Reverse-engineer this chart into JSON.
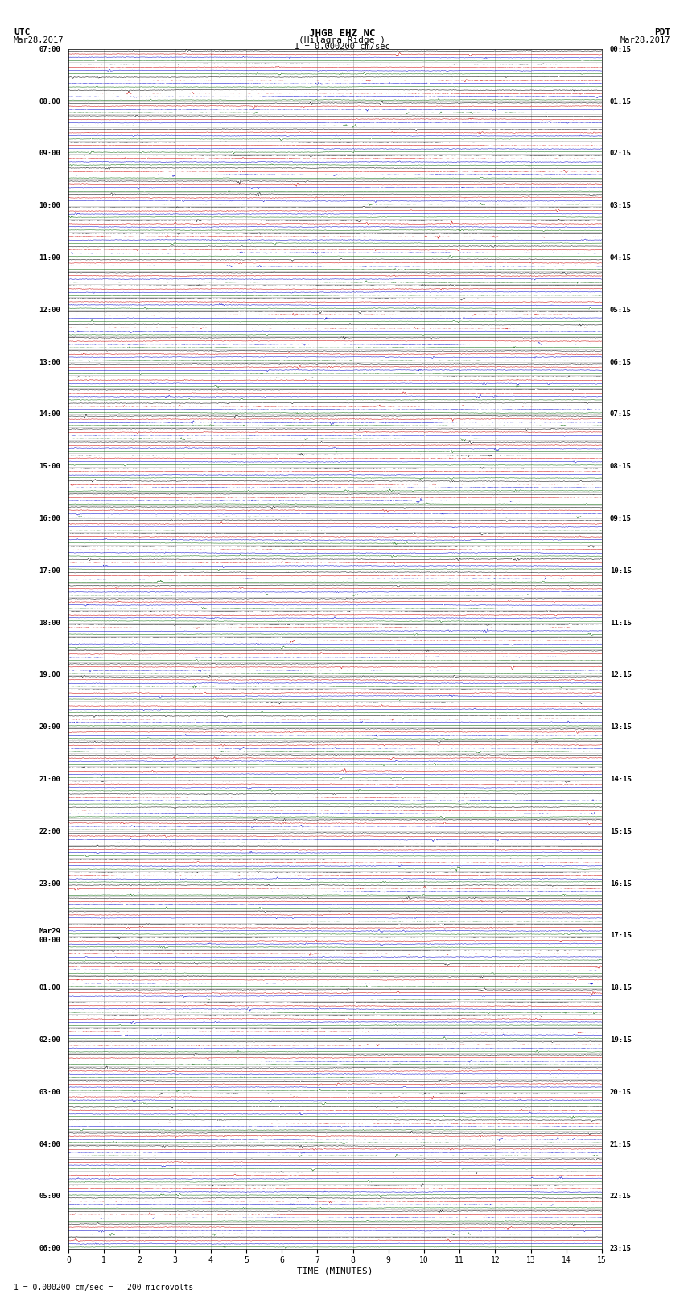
{
  "title_line1": "JHGB EHZ NC",
  "title_line2": "(Hilagra Ridge )",
  "scale_label": "I = 0.000200 cm/sec",
  "bottom_label": "1 = 0.000200 cm/sec =   200 microvolts",
  "left_header": "UTC",
  "left_date": "Mar28,2017",
  "right_header": "PDT",
  "right_date": "Mar28,2017",
  "xlabel": "TIME (MINUTES)",
  "xlim": [
    0,
    15
  ],
  "xticks": [
    0,
    1,
    2,
    3,
    4,
    5,
    6,
    7,
    8,
    9,
    10,
    11,
    12,
    13,
    14,
    15
  ],
  "bg_color": "#ffffff",
  "grid_color": "#888888",
  "trace_colors": [
    "#000000",
    "#cc0000",
    "#0000cc",
    "#006600"
  ],
  "utc_labels": [
    "07:00",
    "",
    "",
    "",
    "08:00",
    "",
    "",
    "",
    "09:00",
    "",
    "",
    "",
    "10:00",
    "",
    "",
    "",
    "11:00",
    "",
    "",
    "",
    "12:00",
    "",
    "",
    "",
    "13:00",
    "",
    "",
    "",
    "14:00",
    "",
    "",
    "",
    "15:00",
    "",
    "",
    "",
    "16:00",
    "",
    "",
    "",
    "17:00",
    "",
    "",
    "",
    "18:00",
    "",
    "",
    "",
    "19:00",
    "",
    "",
    "",
    "20:00",
    "",
    "",
    "",
    "21:00",
    "",
    "",
    "",
    "22:00",
    "",
    "",
    "",
    "23:00",
    "",
    "",
    "",
    "Mar29\n00:00",
    "",
    "",
    "",
    "01:00",
    "",
    "",
    "",
    "02:00",
    "",
    "",
    "",
    "03:00",
    "",
    "",
    "",
    "04:00",
    "",
    "",
    "",
    "05:00",
    "",
    "",
    "",
    "06:00"
  ],
  "pdt_labels": [
    "00:15",
    "",
    "",
    "",
    "01:15",
    "",
    "",
    "",
    "02:15",
    "",
    "",
    "",
    "03:15",
    "",
    "",
    "",
    "04:15",
    "",
    "",
    "",
    "05:15",
    "",
    "",
    "",
    "06:15",
    "",
    "",
    "",
    "07:15",
    "",
    "",
    "",
    "08:15",
    "",
    "",
    "",
    "09:15",
    "",
    "",
    "",
    "10:15",
    "",
    "",
    "",
    "11:15",
    "",
    "",
    "",
    "12:15",
    "",
    "",
    "",
    "13:15",
    "",
    "",
    "",
    "14:15",
    "",
    "",
    "",
    "15:15",
    "",
    "",
    "",
    "16:15",
    "",
    "",
    "",
    "17:15",
    "",
    "",
    "",
    "18:15",
    "",
    "",
    "",
    "19:15",
    "",
    "",
    "",
    "20:15",
    "",
    "",
    "",
    "21:15",
    "",
    "",
    "",
    "22:15",
    "",
    "",
    "",
    "23:15"
  ],
  "n_rows": 92,
  "n_traces_per_row": 4,
  "fig_width": 8.5,
  "fig_height": 16.13
}
